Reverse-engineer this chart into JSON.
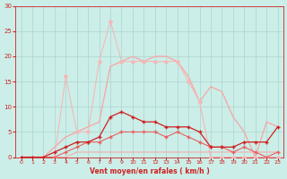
{
  "x": [
    0,
    1,
    2,
    3,
    4,
    5,
    6,
    7,
    8,
    9,
    10,
    11,
    12,
    13,
    14,
    15,
    16,
    17,
    18,
    19,
    20,
    21,
    22,
    23
  ],
  "line_bell_light": [
    0,
    0,
    0,
    2,
    4,
    5,
    6,
    7,
    18,
    19,
    20,
    19,
    20,
    20,
    19,
    16,
    11,
    14,
    13,
    8,
    5,
    0,
    7,
    6
  ],
  "line_spike_light": [
    0,
    0,
    0,
    0,
    16,
    5,
    5,
    19,
    27,
    19,
    19,
    19,
    19,
    19,
    19,
    15,
    11,
    0,
    0,
    0,
    0,
    0,
    0,
    0
  ],
  "line_medium_flat": [
    0,
    0,
    0,
    0,
    0,
    1,
    1,
    1,
    1,
    1,
    1,
    1,
    1,
    1,
    1,
    1,
    1,
    1,
    1,
    1,
    1,
    1,
    1,
    1
  ],
  "line_dark_spiky": [
    0,
    0,
    0,
    1,
    2,
    3,
    3,
    4,
    8,
    9,
    8,
    7,
    7,
    6,
    6,
    6,
    5,
    2,
    2,
    2,
    3,
    3,
    3,
    6
  ],
  "line_dark_wavy": [
    0,
    0,
    0,
    0,
    1,
    2,
    3,
    3,
    4,
    5,
    5,
    5,
    5,
    4,
    5,
    4,
    3,
    2,
    2,
    1,
    2,
    1,
    0,
    1
  ],
  "xlabel": "Vent moyen/en rafales ( km/h )",
  "ylabel_ticks": [
    0,
    5,
    10,
    15,
    20,
    25,
    30
  ],
  "xlim": [
    -0.5,
    23.5
  ],
  "ylim": [
    0,
    30
  ],
  "bg_color": "#cceee8",
  "color_light": "#f4aaaa",
  "color_light2": "#f4b8b8",
  "color_dark": "#cc2222",
  "color_medium": "#e86060",
  "grid_color": "#aad4cc"
}
